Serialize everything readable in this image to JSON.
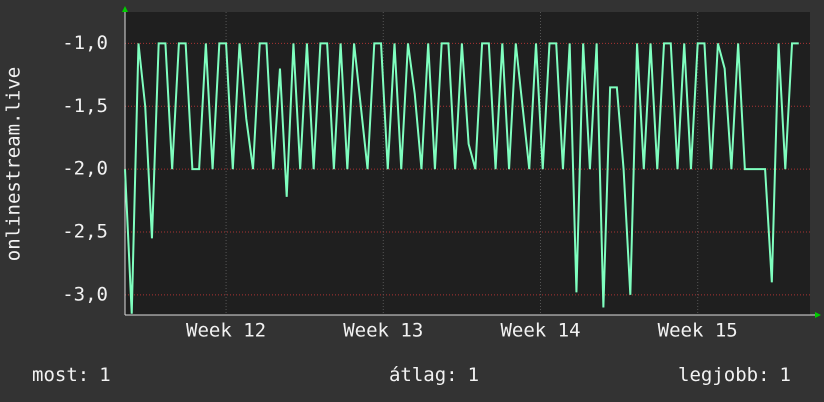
{
  "chart_data": {
    "type": "line",
    "y_label": "onlinestream.live",
    "x": [
      0,
      0.3,
      0.6,
      0.9,
      1.2,
      1.5,
      1.8,
      2.1,
      2.4,
      2.7,
      3.0,
      3.3,
      3.6,
      3.9,
      4.2,
      4.5,
      4.8,
      5.1,
      5.4,
      5.7,
      6.0,
      6.3,
      6.6,
      6.9,
      7.2,
      7.5,
      7.8,
      8.1,
      8.4,
      8.7,
      9.0,
      9.3,
      9.6,
      9.9,
      10.2,
      10.5,
      10.8,
      11.1,
      11.4,
      11.7,
      12.0,
      12.3,
      12.6,
      12.9,
      13.2,
      13.5,
      13.8,
      14.1,
      14.4,
      14.7,
      15.0,
      15.3,
      15.6,
      15.9,
      16.2,
      16.5,
      16.8,
      17.1,
      17.4,
      17.7,
      18.0,
      18.3,
      18.6,
      18.9,
      19.2,
      19.5,
      19.8,
      20.1,
      20.4,
      20.7,
      21.0,
      21.3,
      21.6,
      21.9,
      22.2,
      22.5,
      22.8,
      23.1,
      23.4,
      23.7,
      24.0,
      24.3,
      24.6,
      24.9,
      25.2,
      25.5,
      25.8,
      26.1,
      26.4,
      26.7,
      27.0,
      27.3,
      27.6,
      27.9,
      28.2,
      28.5,
      28.8,
      29.1,
      29.4,
      29.7,
      30.0
    ],
    "series": [
      {
        "name": "onlinestream.live",
        "color": "#7fffbf",
        "values": [
          -2.0,
          -3.15,
          -1.0,
          -1.5,
          -2.55,
          -1.0,
          -1.0,
          -2.0,
          -1.0,
          -1.0,
          -2.0,
          -2.0,
          -1.0,
          -2.0,
          -1.0,
          -1.0,
          -2.0,
          -1.0,
          -1.6,
          -2.0,
          -1.0,
          -1.0,
          -2.0,
          -1.2,
          -2.22,
          -1.0,
          -2.0,
          -1.0,
          -2.0,
          -1.0,
          -1.0,
          -2.0,
          -1.0,
          -2.0,
          -1.0,
          -1.5,
          -2.0,
          -1.0,
          -1.0,
          -2.0,
          -1.0,
          -2.0,
          -1.0,
          -1.4,
          -2.0,
          -1.0,
          -2.0,
          -1.0,
          -1.0,
          -2.0,
          -1.0,
          -1.8,
          -2.0,
          -1.0,
          -1.0,
          -2.0,
          -1.0,
          -2.0,
          -1.0,
          -1.5,
          -2.0,
          -1.0,
          -2.0,
          -1.0,
          -1.0,
          -2.0,
          -1.0,
          -2.98,
          -1.0,
          -2.0,
          -1.0,
          -3.1,
          -1.35,
          -1.35,
          -2.0,
          -3.0,
          -1.0,
          -2.0,
          -1.0,
          -2.0,
          -1.0,
          -1.0,
          -2.0,
          -1.0,
          -2.0,
          -1.0,
          -1.0,
          -2.0,
          -1.0,
          -1.2,
          -2.0,
          -1.0,
          -2.0,
          -2.0,
          -2.0,
          -2.0,
          -2.9,
          -1.0,
          -2.0,
          -1.0,
          -1.0
        ]
      }
    ],
    "xlim": [
      0,
      30.5
    ],
    "xticks": [
      {
        "value": 4.5,
        "label": "Week 12"
      },
      {
        "value": 11.5,
        "label": "Week 13"
      },
      {
        "value": 18.5,
        "label": "Week 14"
      },
      {
        "value": 25.5,
        "label": "Week 15"
      }
    ],
    "ylim": [
      -3.16,
      -0.75
    ],
    "yticks": [
      {
        "value": -1,
        "label": "-1,0"
      },
      {
        "value": -1.5,
        "label": "-1,5"
      },
      {
        "value": -2,
        "label": "-2,0"
      },
      {
        "value": -2.5,
        "label": "-2,5"
      },
      {
        "value": -3,
        "label": "-3,0"
      }
    ],
    "grid": true,
    "stats": [
      {
        "label": "most:",
        "value": 1
      },
      {
        "label": "átlag:",
        "value": 1
      },
      {
        "label": "legjobb:",
        "value": 1
      }
    ]
  }
}
